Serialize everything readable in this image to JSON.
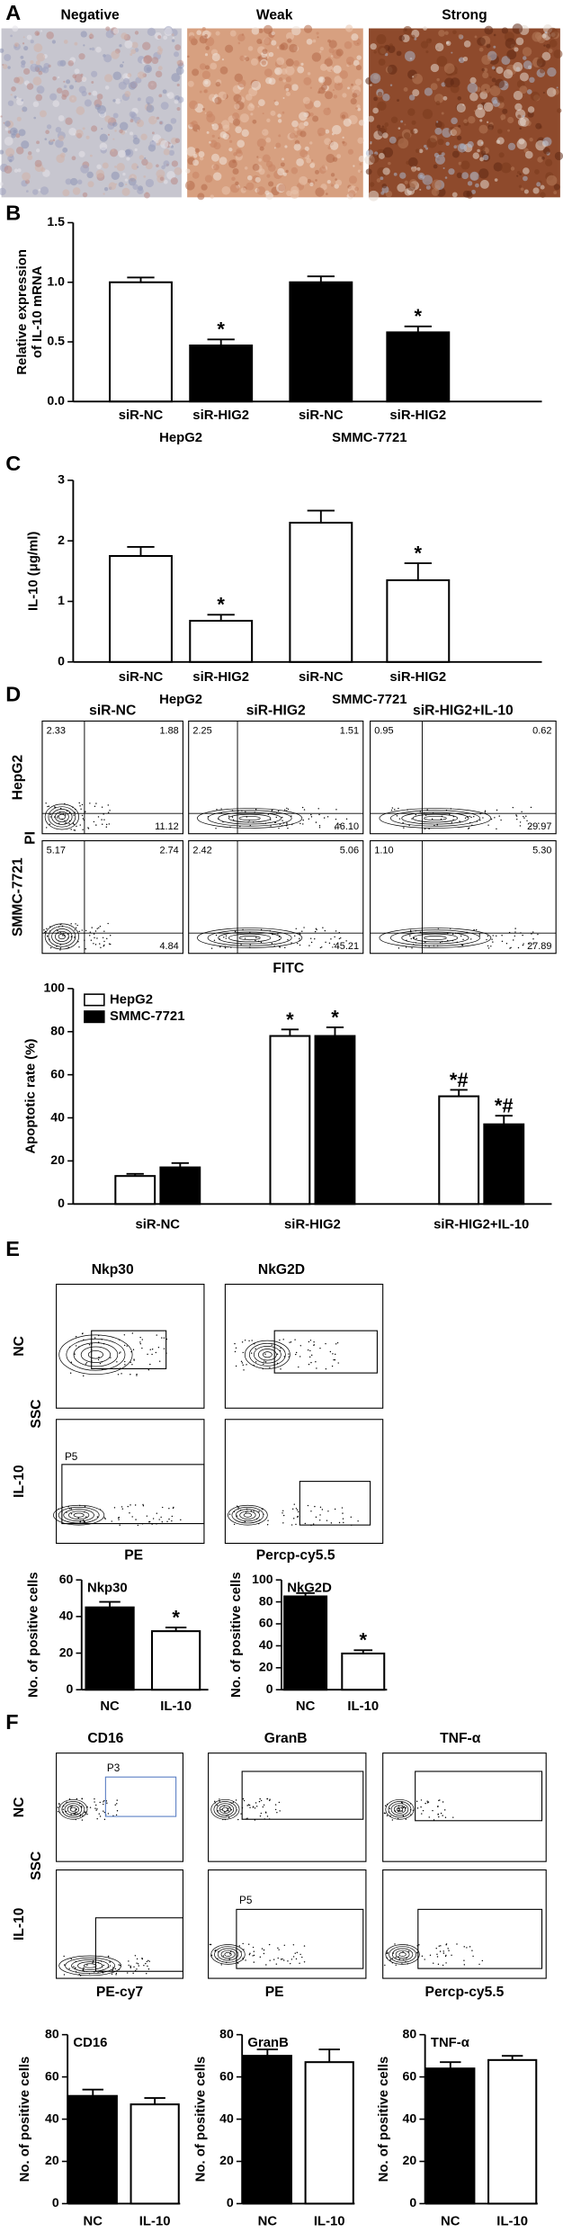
{
  "panel_labels": [
    "A",
    "B",
    "C",
    "D",
    "E",
    "F"
  ],
  "panel_a": {
    "labels": [
      "Negative",
      "Weak",
      "Strong"
    ]
  },
  "flow_d": {
    "columns": [
      "siR-NC",
      "siR-HIG2",
      "siR-HIG2+IL-10"
    ],
    "rows": [
      "HepG2",
      "SMMC-7721"
    ],
    "y_axis": "PI",
    "x_axis": "FITC",
    "quadrants": [
      [
        [
          "2.33",
          "1.88",
          "11.12"
        ],
        [
          "2.25",
          "1.51",
          "46.10"
        ],
        [
          "0.95",
          "0.62",
          "29.97"
        ]
      ],
      [
        [
          "5.17",
          "2.74",
          "4.84"
        ],
        [
          "2.42",
          "5.06",
          "45.21"
        ],
        [
          "1.10",
          "5.30",
          "27.89"
        ]
      ]
    ]
  },
  "flow_e": {
    "columns": [
      "Nkp30",
      "NkG2D"
    ],
    "rows": [
      "NC",
      "IL-10"
    ],
    "y_axis": "SSC",
    "x_axes": [
      "PE",
      "Percp-cy5.5"
    ],
    "gate": "P5"
  },
  "flow_f": {
    "columns": [
      "CD16",
      "GranB",
      "TNF-α"
    ],
    "rows": [
      "NC",
      "IL-10"
    ],
    "y_axis": "SSC",
    "x_axes": [
      "PE-cy7",
      "PE",
      "Percp-cy5.5"
    ],
    "gates": [
      "P3",
      "P5"
    ]
  },
  "chart_data": [
    {
      "type": "bar",
      "y_label": [
        "Relative expression",
        "of IL-10 mRNA"
      ],
      "ylim": [
        0,
        1.5
      ],
      "yticks": [
        {
          "value": 0,
          "label": "0.0"
        },
        0.5,
        {
          "value": 1,
          "label": "1.0"
        },
        1.5
      ],
      "categories": [
        "siR-NC",
        "siR-HIG2",
        "siR-NC",
        "siR-HIG2"
      ],
      "groups": [
        "HepG2",
        "SMMC-7721"
      ],
      "values": [
        1.0,
        0.47,
        1.0,
        0.58
      ],
      "errors": [
        0.04,
        0.05,
        0.05,
        0.05
      ],
      "colors": [
        "#ffffff",
        "#000000",
        "#000000",
        "#000000"
      ],
      "annotations": [
        null,
        "*",
        null,
        "*"
      ]
    },
    {
      "type": "bar",
      "y_label": "IL-10 (μg/ml)",
      "ylim": [
        0,
        3
      ],
      "yticks": [
        0,
        1,
        2,
        3
      ],
      "categories": [
        "siR-NC",
        "siR-HIG2",
        "siR-NC",
        "siR-HIG2"
      ],
      "groups": [
        "HepG2",
        "SMMC-7721"
      ],
      "values": [
        1.75,
        0.68,
        2.3,
        1.35
      ],
      "errors": [
        0.15,
        0.1,
        0.2,
        0.28
      ],
      "colors": [
        "#ffffff",
        "#ffffff",
        "#ffffff",
        "#ffffff"
      ],
      "annotations": [
        null,
        "*",
        null,
        "*"
      ]
    },
    {
      "type": "grouped_bar",
      "y_label": "Apoptotic rate (%)",
      "ylim": [
        0,
        100
      ],
      "yticks": [
        0,
        20,
        40,
        60,
        80,
        100
      ],
      "categories": [
        "siR-NC",
        "siR-HIG2",
        "siR-HIG2+IL-10"
      ],
      "legend": "upper left",
      "series": [
        {
          "name": "HepG2",
          "color": "#ffffff",
          "values": [
            13,
            78,
            50
          ],
          "errors": [
            1,
            3,
            3
          ],
          "annotations": [
            null,
            "*",
            "*#"
          ]
        },
        {
          "name": "SMMC-7721",
          "color": "#000000",
          "values": [
            17,
            78,
            37
          ],
          "errors": [
            2,
            4,
            4
          ],
          "annotations": [
            null,
            "*",
            "*#"
          ]
        }
      ]
    },
    {
      "type": "bar",
      "title": "Nkp30",
      "y_label": "No. of positive cells",
      "ylim": [
        0,
        60
      ],
      "yticks": [
        0,
        20,
        40,
        60
      ],
      "categories": [
        "NC",
        "IL-10"
      ],
      "values": [
        45,
        32
      ],
      "errors": [
        3,
        2
      ],
      "colors": [
        "#000000",
        "#ffffff"
      ],
      "annotations": [
        null,
        "*"
      ]
    },
    {
      "type": "bar",
      "title": "NkG2D",
      "y_label": "No. of positive cells",
      "ylim": [
        0,
        100
      ],
      "yticks": [
        0,
        20,
        40,
        60,
        80,
        100
      ],
      "categories": [
        "NC",
        "IL-10"
      ],
      "values": [
        85,
        33
      ],
      "errors": [
        3,
        3
      ],
      "colors": [
        "#000000",
        "#ffffff"
      ],
      "annotations": [
        null,
        "*"
      ]
    },
    {
      "type": "bar",
      "title": "CD16",
      "y_label": "No. of positive cells",
      "ylim": [
        0,
        80
      ],
      "yticks": [
        0,
        20,
        40,
        60,
        80
      ],
      "categories": [
        "NC",
        "IL-10"
      ],
      "values": [
        51,
        47
      ],
      "errors": [
        3,
        3
      ],
      "colors": [
        "#000000",
        "#ffffff"
      ],
      "annotations": [
        null,
        null
      ]
    },
    {
      "type": "bar",
      "title": "GranB",
      "y_label": "No. of positive cells",
      "ylim": [
        0,
        80
      ],
      "yticks": [
        0,
        20,
        40,
        60,
        80
      ],
      "categories": [
        "NC",
        "IL-10"
      ],
      "values": [
        70,
        67
      ],
      "errors": [
        3,
        6
      ],
      "colors": [
        "#000000",
        "#ffffff"
      ],
      "annotations": [
        null,
        null
      ]
    },
    {
      "type": "bar",
      "title": "TNF-α",
      "y_label": "No. of positive cells",
      "ylim": [
        0,
        80
      ],
      "yticks": [
        0,
        20,
        40,
        60,
        80
      ],
      "categories": [
        "NC",
        "IL-10"
      ],
      "values": [
        64,
        68
      ],
      "errors": [
        3,
        2
      ],
      "colors": [
        "#000000",
        "#ffffff"
      ],
      "annotations": [
        null,
        null
      ]
    }
  ]
}
